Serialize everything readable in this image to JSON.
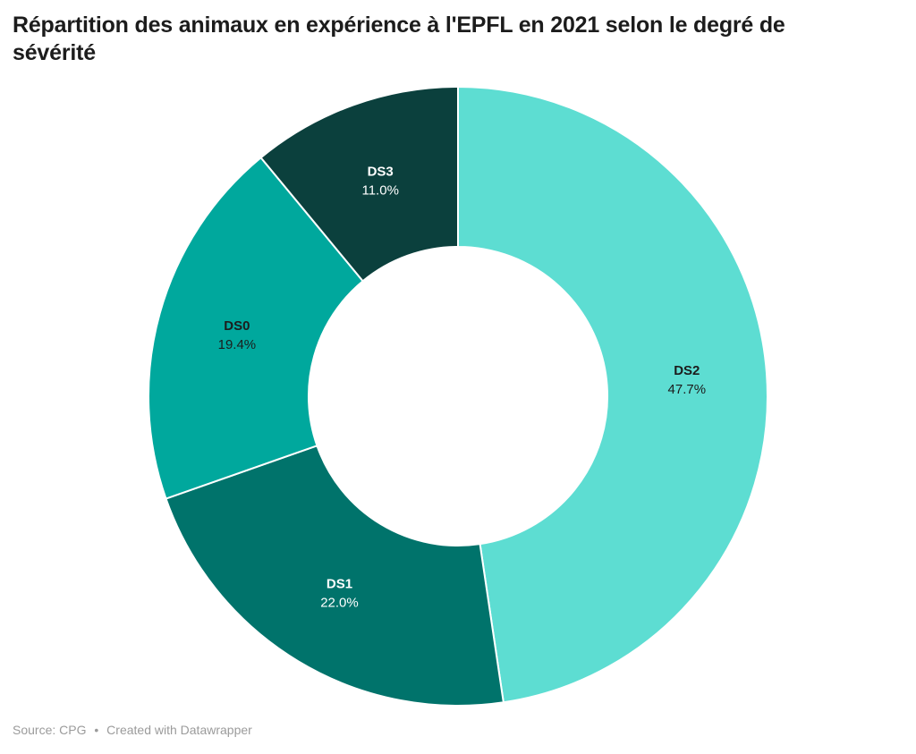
{
  "header": {
    "title": "Répartition des animaux en expérience à l'EPFL en 2021 selon le degré de sévérité"
  },
  "footer": {
    "source_text": "Source: CPG",
    "separator": "•",
    "attribution_text": "Created with Datawrapper"
  },
  "chart_data": {
    "type": "pie",
    "subtype": "donut",
    "title": "Répartition des animaux en expérience à l'EPFL en 2021 selon le degré de sévérité",
    "categories": [
      "DS2",
      "DS1",
      "DS0",
      "DS3"
    ],
    "values": [
      47.7,
      22.0,
      19.4,
      11.0
    ],
    "value_labels": [
      "47.7%",
      "22.0%",
      "19.4%",
      "11.0%"
    ],
    "unit": "%",
    "colors": [
      "#5dddd2",
      "#00736b",
      "#00a89d",
      "#0b403d"
    ],
    "label_text_colors": [
      "#1c1c1c",
      "#ffffff",
      "#1c1c1c",
      "#ffffff"
    ],
    "slice_separator_color": "#ffffff",
    "start_angle_deg": 0,
    "direction": "clockwise",
    "inner_radius_ratio": 0.483,
    "legend_position": "none",
    "label_placement": "inside-slices"
  }
}
